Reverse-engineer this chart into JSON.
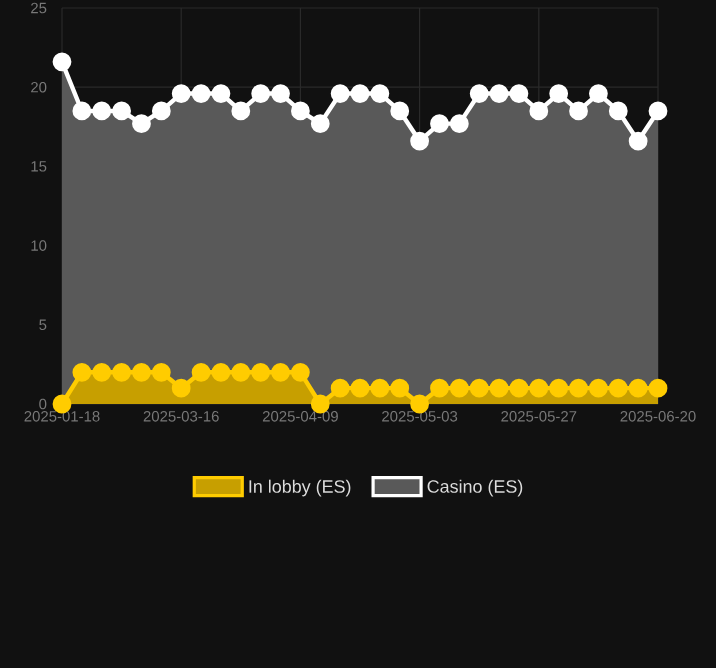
{
  "chart_data": {
    "type": "area",
    "categories": [
      "2025-01-18",
      null,
      null,
      null,
      null,
      null,
      "2025-03-16",
      null,
      null,
      null,
      null,
      null,
      "2025-04-09",
      null,
      null,
      null,
      null,
      null,
      "2025-05-03",
      null,
      null,
      null,
      null,
      null,
      "2025-05-27",
      null,
      null,
      null,
      null,
      null,
      "2025-06-20"
    ],
    "series": [
      {
        "name": "In lobby (ES)",
        "color": "#ffcc00",
        "values": [
          0,
          2,
          2,
          2,
          2,
          2,
          1,
          2,
          2,
          2,
          2,
          2,
          2,
          0,
          1,
          1,
          1,
          1,
          0,
          1,
          1,
          1,
          1,
          1,
          1,
          1,
          1,
          1,
          1,
          1,
          1
        ]
      },
      {
        "name": "Casino (ES)",
        "color": "#ffffff",
        "values": [
          21.6,
          18.5,
          18.5,
          18.5,
          17.7,
          18.5,
          19.6,
          19.6,
          19.6,
          18.5,
          19.6,
          19.6,
          18.5,
          17.7,
          19.6,
          19.6,
          19.6,
          18.5,
          16.6,
          17.7,
          17.7,
          19.6,
          19.6,
          19.6,
          18.5,
          19.6,
          18.5,
          19.6,
          18.5,
          16.6,
          18.5
        ]
      }
    ],
    "ylim": [
      0,
      25
    ],
    "yticks": [
      0,
      5,
      10,
      15,
      20,
      25
    ],
    "grid": true,
    "legend": "bottom",
    "marker": "circle"
  }
}
